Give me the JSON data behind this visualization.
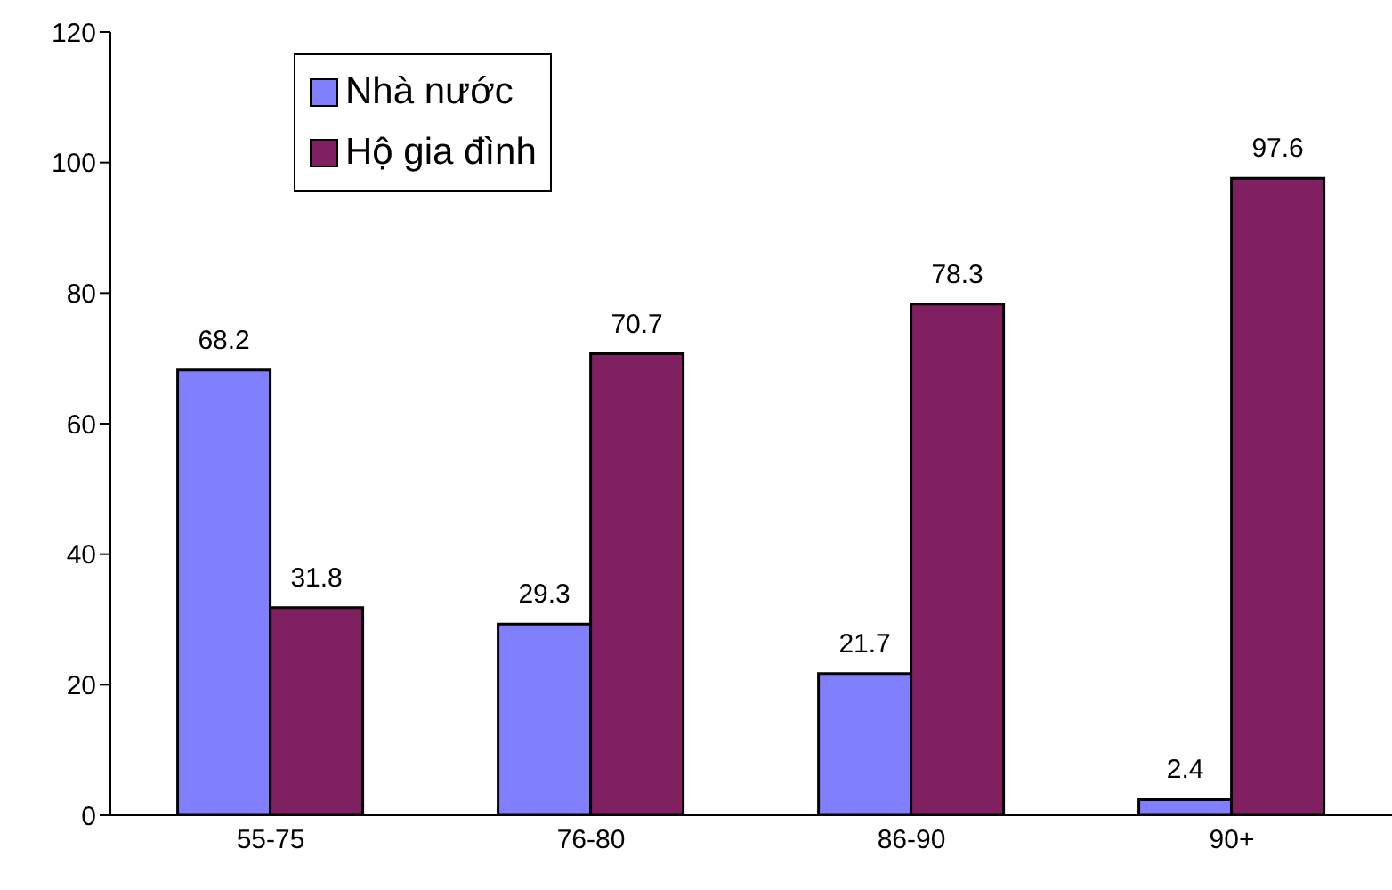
{
  "chart_data": {
    "type": "bar",
    "categories": [
      "55-75",
      "76-80",
      "86-90",
      "90+"
    ],
    "series": [
      {
        "name": "Nhà nước",
        "color": "#8080ff",
        "values": [
          68.2,
          29.3,
          21.7,
          2.4
        ]
      },
      {
        "name": "Hộ gia đình",
        "color": "#802060",
        "values": [
          31.8,
          70.7,
          78.3,
          97.6
        ]
      }
    ],
    "ylim": [
      0,
      120
    ],
    "yticks": [
      0,
      20,
      40,
      60,
      80,
      100,
      120
    ],
    "grid": false,
    "legend": "top left",
    "data_labels": true
  }
}
